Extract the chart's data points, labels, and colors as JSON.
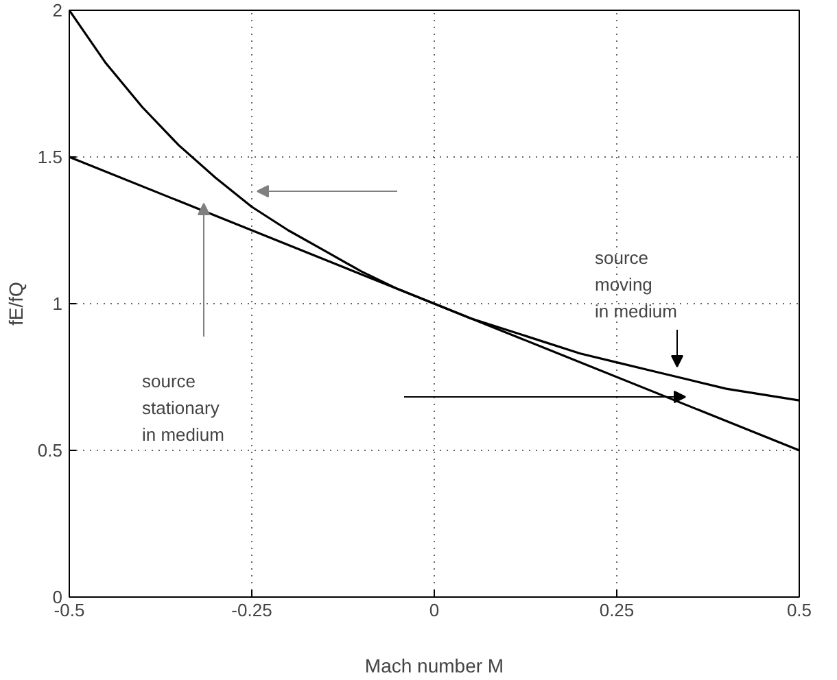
{
  "chart_data": {
    "type": "line",
    "xlabel": "Mach number M",
    "ylabel": "fE/fQ",
    "xlim": [
      -0.5,
      0.5
    ],
    "ylim": [
      0,
      2
    ],
    "xticks": [
      -0.5,
      -0.25,
      0,
      0.25,
      0.5
    ],
    "yticks": [
      0,
      0.5,
      1,
      1.5,
      2
    ],
    "grid": true,
    "marker": "none",
    "line_style": "solid",
    "series": [
      {
        "color": "#000000",
        "x": [
          -0.5,
          -0.45,
          -0.4,
          -0.35,
          -0.3,
          -0.25,
          -0.2,
          -0.15,
          -0.1,
          -0.05,
          0,
          0.05,
          0.1,
          0.15,
          0.2,
          0.25,
          0.3,
          0.35,
          0.4,
          0.45,
          0.5
        ],
        "values": [
          2,
          1.82,
          1.67,
          1.54,
          1.43,
          1.33,
          1.25,
          1.18,
          1.11,
          1.05,
          1,
          0.95,
          0.91,
          0.87,
          0.83,
          0.8,
          0.77,
          0.74,
          0.71,
          0.69,
          0.67
        ]
      },
      {
        "color": "#000000",
        "x": [
          -0.5,
          0.5
        ],
        "values": [
          1.5,
          0.5
        ]
      }
    ],
    "annotations": [
      "source\nmoving\nin medium",
      "source\nstationary\nin medium"
    ]
  }
}
